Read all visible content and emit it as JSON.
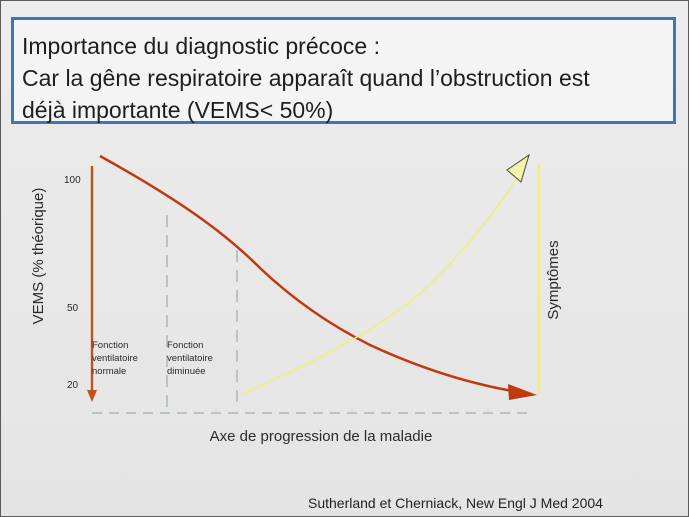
{
  "title": {
    "line1": "Importance du diagnostic précoce :",
    "line2": "Car la gêne respiratoire apparaît quand l’obstruction est",
    "line3": "déjà importante (VEMS< 50%)"
  },
  "diagram": {
    "y_axis_label": "VEMS (% théorique)",
    "y_ticks": [
      "100",
      "50",
      "20"
    ],
    "x_axis_label": "Axe de progression de la maladie",
    "right_axis_label": "Symptômes",
    "zone_normal": [
      "Fonction",
      "ventilatoire",
      "normale"
    ],
    "zone_diminished": [
      "Fonction",
      "ventilatoire",
      "diminuée"
    ],
    "colors": {
      "vems_curve": "#c0390f",
      "symptom_curve": "#efef7a",
      "left_axis": "#c0531a",
      "dash": "#b9c4bb"
    }
  },
  "source": "Sutherland  et Cherniack, New Engl J Med 2004"
}
